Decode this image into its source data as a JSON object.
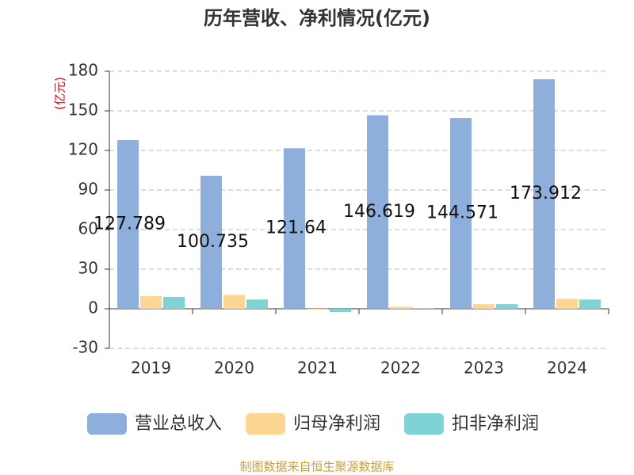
{
  "chart_data": {
    "type": "bar",
    "title": "历年营收、净利情况(亿元)",
    "y_label": "(亿元)",
    "categories": [
      "2019",
      "2020",
      "2021",
      "2022",
      "2023",
      "2024"
    ],
    "series": [
      {
        "name": "营业总收入",
        "color": "#8eaedb",
        "values": [
          127.789,
          100.735,
          121.64,
          146.619,
          144.571,
          173.912
        ],
        "labels": true
      },
      {
        "name": "归母净利润",
        "color": "#fdd692",
        "values": [
          9.5,
          10.5,
          -0.5,
          1.5,
          3.5,
          7.5
        ]
      },
      {
        "name": "扣非净利润",
        "color": "#7fd3d5",
        "values": [
          9,
          7,
          -2.5,
          0.5,
          3.5,
          7
        ]
      }
    ],
    "ylim": [
      -30,
      180
    ],
    "yticks": [
      -30,
      0,
      30,
      60,
      90,
      120,
      150,
      180
    ],
    "grid": true,
    "legend": "bottom",
    "source": "制图数据来自恒生聚源数据库"
  }
}
